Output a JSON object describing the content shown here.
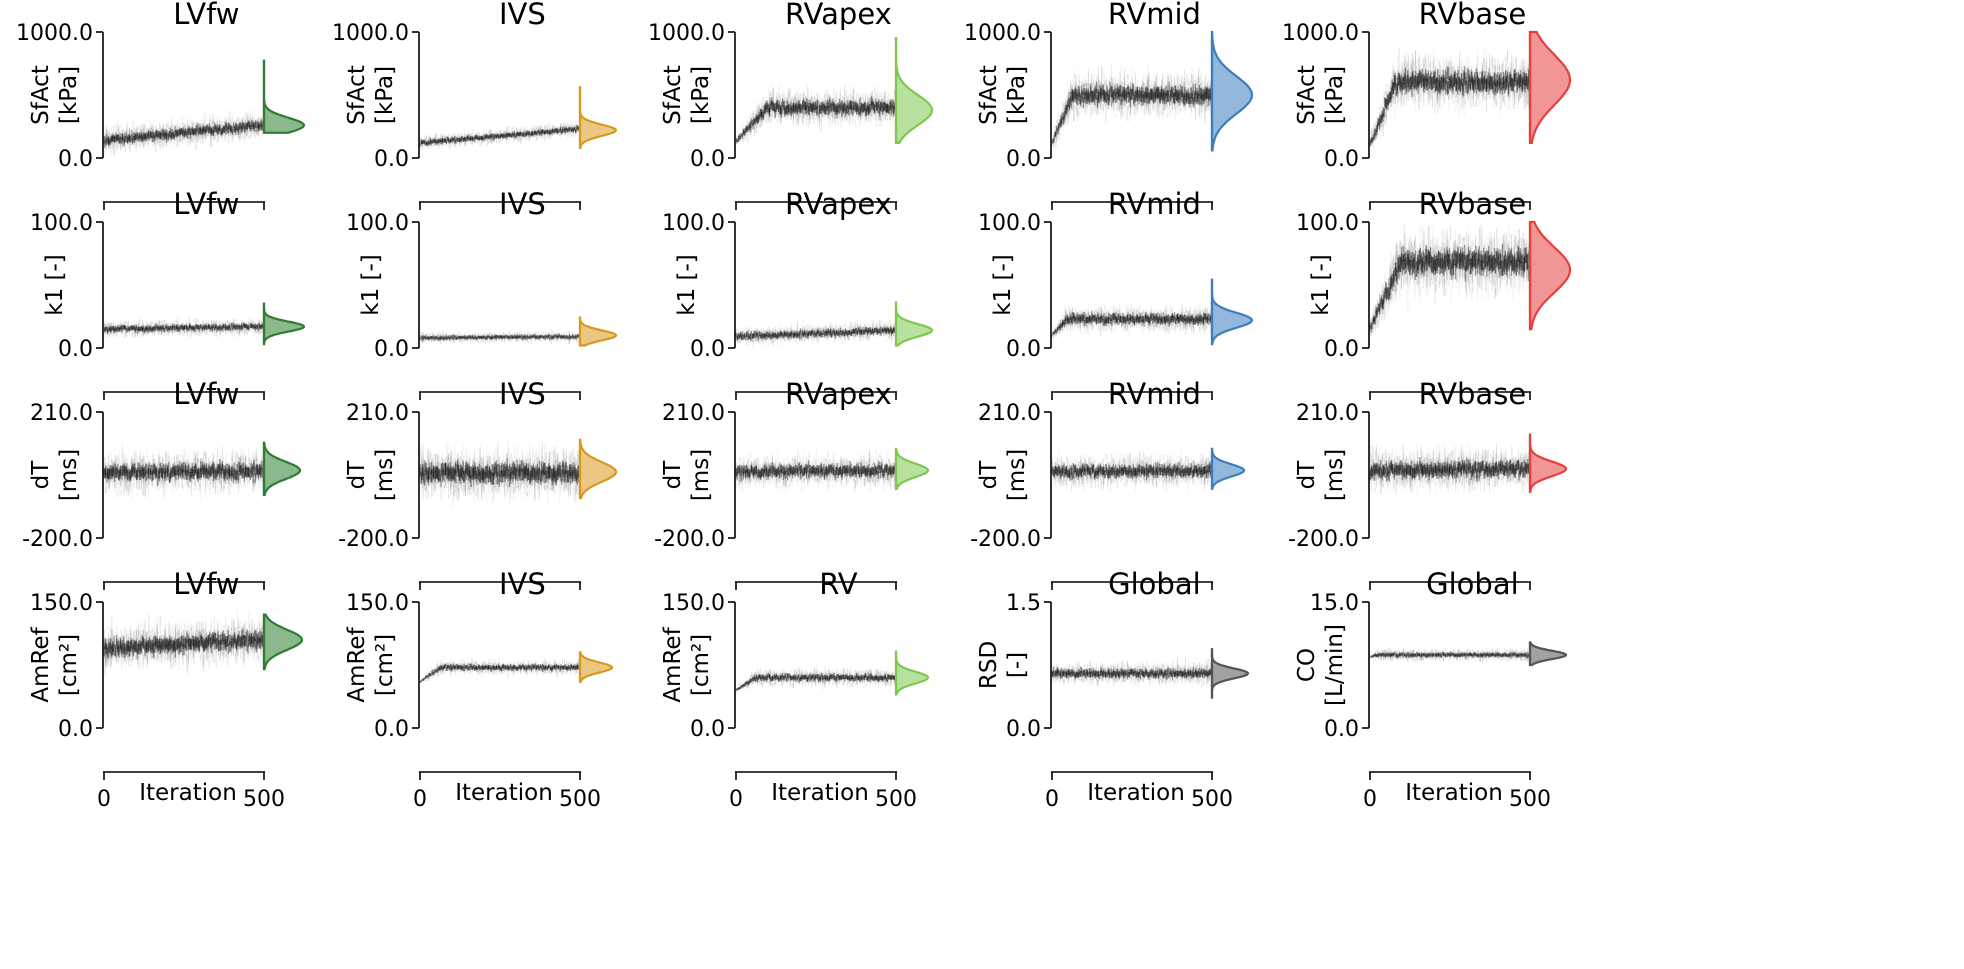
{
  "figure": {
    "xlabel": "Iteration",
    "x_ticks": [
      "0",
      "500"
    ]
  },
  "chart_data": [
    {
      "type": "area",
      "row": 0,
      "col": 0,
      "title": "LVfw",
      "ylabel_line1": "SfAct",
      "ylabel_line2": "[kPa]",
      "ylim": [
        0,
        1000
      ],
      "ytick_labels": [
        "1000.0",
        "0.0"
      ],
      "xlim": [
        0,
        500
      ],
      "xtick_labels": [
        "0",
        "500"
      ],
      "xlabel": "Iteration",
      "color": "#2e7d32",
      "trace_start": 140,
      "trace_end": 260,
      "trace_spread": 140,
      "burn_in": 0,
      "density_mode": 260,
      "density_sd": 60,
      "density_max_width": 40,
      "density_min": 200,
      "density_max": 780
    },
    {
      "type": "area",
      "row": 0,
      "col": 1,
      "title": "IVS",
      "ylabel_line1": "SfAct",
      "ylabel_line2": "[kPa]",
      "ylim": [
        0,
        1000
      ],
      "ytick_labels": [
        "1000.0",
        "0.0"
      ],
      "xlim": [
        0,
        500
      ],
      "xtick_labels": [
        "0",
        "500"
      ],
      "xlabel": "Iteration",
      "color": "#d89a1e",
      "trace_start": 120,
      "trace_end": 230,
      "trace_spread": 80,
      "burn_in": 0,
      "density_mode": 220,
      "density_sd": 45,
      "density_max_width": 36,
      "density_min": 80,
      "density_max": 570
    },
    {
      "type": "area",
      "row": 0,
      "col": 2,
      "title": "RVapex",
      "ylabel_line1": "SfAct",
      "ylabel_line2": "[kPa]",
      "ylim": [
        0,
        1000
      ],
      "ytick_labels": [
        "1000.0",
        "0.0"
      ],
      "xlim": [
        0,
        500
      ],
      "xtick_labels": [
        "0",
        "500"
      ],
      "xlabel": "Iteration",
      "color": "#7ec850",
      "trace_start": 130,
      "trace_end": 400,
      "trace_spread": 190,
      "burn_in": 60,
      "density_mode": 380,
      "density_sd": 120,
      "density_max_width": 36,
      "density_min": 120,
      "density_max": 960
    },
    {
      "type": "area",
      "row": 0,
      "col": 3,
      "title": "RVmid",
      "ylabel_line1": "SfAct",
      "ylabel_line2": "[kPa]",
      "ylim": [
        0,
        1000
      ],
      "ytick_labels": [
        "1000.0",
        "0.0"
      ],
      "xlim": [
        0,
        500
      ],
      "xtick_labels": [
        "0",
        "500"
      ],
      "xlabel": "Iteration",
      "color": "#3d7ebf",
      "trace_start": 120,
      "trace_end": 500,
      "trace_spread": 240,
      "burn_in": 40,
      "density_mode": 500,
      "density_sd": 150,
      "density_max_width": 40,
      "density_min": 60,
      "density_max": 1000
    },
    {
      "type": "area",
      "row": 0,
      "col": 4,
      "title": "RVbase",
      "ylabel_line1": "SfAct",
      "ylabel_line2": "[kPa]",
      "ylim": [
        0,
        1000
      ],
      "ytick_labels": [
        "1000.0",
        "0.0"
      ],
      "xlim": [
        0,
        500
      ],
      "xtick_labels": [
        "0",
        "500"
      ],
      "xlabel": "Iteration",
      "color": "#e5403e",
      "trace_start": 100,
      "trace_end": 600,
      "trace_spread": 280,
      "burn_in": 50,
      "density_mode": 620,
      "density_sd": 200,
      "density_max_width": 40,
      "density_min": 120,
      "density_max": 1000
    },
    {
      "type": "area",
      "row": 1,
      "col": 0,
      "title": "LVfw",
      "ylabel_line1": "k1 [-]",
      "ylabel_line2": "",
      "ylim": [
        0,
        100
      ],
      "ytick_labels": [
        "100.0",
        "0.0"
      ],
      "xlim": [
        0,
        500
      ],
      "xtick_labels": [
        "0",
        "500"
      ],
      "xlabel": "Iteration",
      "color": "#2e7d32",
      "trace_start": 15,
      "trace_end": 17,
      "trace_spread": 9,
      "burn_in": 0,
      "density_mode": 17,
      "density_sd": 4,
      "density_max_width": 40,
      "density_min": 3,
      "density_max": 36
    },
    {
      "type": "area",
      "row": 1,
      "col": 1,
      "title": "IVS",
      "ylabel_line1": "k1 [-]",
      "ylabel_line2": "",
      "ylim": [
        0,
        100
      ],
      "ytick_labels": [
        "100.0",
        "0.0"
      ],
      "xlim": [
        0,
        500
      ],
      "xtick_labels": [
        "0",
        "500"
      ],
      "xlabel": "Iteration",
      "color": "#d89a1e",
      "trace_start": 8,
      "trace_end": 9,
      "trace_spread": 6,
      "burn_in": 0,
      "density_mode": 10,
      "density_sd": 4,
      "density_max_width": 36,
      "density_min": 2,
      "density_max": 25
    },
    {
      "type": "area",
      "row": 1,
      "col": 2,
      "title": "RVapex",
      "ylabel_line1": "k1 [-]",
      "ylabel_line2": "",
      "ylim": [
        0,
        100
      ],
      "ytick_labels": [
        "100.0",
        "0.0"
      ],
      "xlim": [
        0,
        500
      ],
      "xtick_labels": [
        "0",
        "500"
      ],
      "xlabel": "Iteration",
      "color": "#7ec850",
      "trace_start": 9,
      "trace_end": 14,
      "trace_spread": 10,
      "burn_in": 0,
      "density_mode": 14,
      "density_sd": 5,
      "density_max_width": 36,
      "density_min": 2,
      "density_max": 37
    },
    {
      "type": "area",
      "row": 1,
      "col": 3,
      "title": "RVmid",
      "ylabel_line1": "k1 [-]",
      "ylabel_line2": "",
      "ylim": [
        0,
        100
      ],
      "ytick_labels": [
        "100.0",
        "0.0"
      ],
      "xlim": [
        0,
        500
      ],
      "xtick_labels": [
        "0",
        "500"
      ],
      "xlabel": "Iteration",
      "color": "#3d7ebf",
      "trace_start": 10,
      "trace_end": 23,
      "trace_spread": 14,
      "burn_in": 30,
      "density_mode": 22,
      "density_sd": 6,
      "density_max_width": 40,
      "density_min": 3,
      "density_max": 55
    },
    {
      "type": "area",
      "row": 1,
      "col": 4,
      "title": "RVbase",
      "ylabel_line1": "k1 [-]",
      "ylabel_line2": "",
      "ylim": [
        0,
        100
      ],
      "ytick_labels": [
        "100.0",
        "0.0"
      ],
      "xlim": [
        0,
        500
      ],
      "xtick_labels": [
        "0",
        "500"
      ],
      "xlabel": "Iteration",
      "color": "#e5403e",
      "trace_start": 15,
      "trace_end": 68,
      "trace_spread": 34,
      "burn_in": 60,
      "density_mode": 62,
      "density_sd": 18,
      "density_max_width": 40,
      "density_min": 15,
      "density_max": 100
    },
    {
      "type": "area",
      "row": 2,
      "col": 0,
      "title": "LVfw",
      "ylabel_line1": "dT",
      "ylabel_line2": "[ms]",
      "ylim": [
        -200,
        210
      ],
      "ytick_labels": [
        "210.0",
        "-200.0"
      ],
      "xlim": [
        0,
        500
      ],
      "xtick_labels": [
        "0",
        "500"
      ],
      "xlabel": "Iteration",
      "color": "#2e7d32",
      "trace_start": 10,
      "trace_end": 20,
      "trace_spread": 90,
      "burn_in": 0,
      "density_mode": 20,
      "density_sd": 28,
      "density_max_width": 36,
      "density_min": -60,
      "density_max": 110
    },
    {
      "type": "area",
      "row": 2,
      "col": 1,
      "title": "IVS",
      "ylabel_line1": "dT",
      "ylabel_line2": "[ms]",
      "ylim": [
        -200,
        210
      ],
      "ytick_labels": [
        "210.0",
        "-200.0"
      ],
      "xlim": [
        0,
        500
      ],
      "xtick_labels": [
        "0",
        "500"
      ],
      "xlabel": "Iteration",
      "color": "#d89a1e",
      "trace_start": 10,
      "trace_end": 10,
      "trace_spread": 110,
      "burn_in": 0,
      "density_mode": 15,
      "density_sd": 32,
      "density_max_width": 36,
      "density_min": -70,
      "density_max": 120
    },
    {
      "type": "area",
      "row": 2,
      "col": 2,
      "title": "RVapex",
      "ylabel_line1": "dT",
      "ylabel_line2": "[ms]",
      "ylim": [
        -200,
        210
      ],
      "ytick_labels": [
        "210.0",
        "-200.0"
      ],
      "xlim": [
        0,
        500
      ],
      "xtick_labels": [
        "0",
        "500"
      ],
      "xlabel": "Iteration",
      "color": "#7ec850",
      "trace_start": 15,
      "trace_end": 20,
      "trace_spread": 70,
      "burn_in": 0,
      "density_mode": 20,
      "density_sd": 22,
      "density_max_width": 32,
      "density_min": -40,
      "density_max": 90
    },
    {
      "type": "area",
      "row": 2,
      "col": 3,
      "title": "RVmid",
      "ylabel_line1": "dT",
      "ylabel_line2": "[ms]",
      "ylim": [
        -200,
        210
      ],
      "ytick_labels": [
        "210.0",
        "-200.0"
      ],
      "xlim": [
        0,
        500
      ],
      "xtick_labels": [
        "0",
        "500"
      ],
      "xlabel": "Iteration",
      "color": "#3d7ebf",
      "trace_start": 15,
      "trace_end": 20,
      "trace_spread": 70,
      "burn_in": 0,
      "density_mode": 20,
      "density_sd": 20,
      "density_max_width": 32,
      "density_min": -40,
      "density_max": 90
    },
    {
      "type": "area",
      "row": 2,
      "col": 4,
      "title": "RVbase",
      "ylabel_line1": "dT",
      "ylabel_line2": "[ms]",
      "ylim": [
        -200,
        210
      ],
      "ytick_labels": [
        "210.0",
        "-200.0"
      ],
      "xlim": [
        0,
        500
      ],
      "xtick_labels": [
        "0",
        "500"
      ],
      "xlabel": "Iteration",
      "color": "#e5403e",
      "trace_start": 20,
      "trace_end": 25,
      "trace_spread": 90,
      "burn_in": 0,
      "density_mode": 25,
      "density_sd": 24,
      "density_max_width": 36,
      "density_min": -50,
      "density_max": 140
    },
    {
      "type": "area",
      "row": 3,
      "col": 0,
      "title": "LVfw",
      "ylabel_line1": "AmRef",
      "ylabel_line2": "[cm²]",
      "ylim": [
        0,
        150
      ],
      "ytick_labels": [
        "150.0",
        "0.0"
      ],
      "xlim": [
        0,
        500
      ],
      "xtick_labels": [
        "0",
        "500"
      ],
      "xlabel": "Iteration",
      "color": "#2e7d32",
      "trace_start": 95,
      "trace_end": 105,
      "trace_spread": 35,
      "burn_in": 0,
      "density_mode": 105,
      "density_sd": 12,
      "density_max_width": 38,
      "density_min": 70,
      "density_max": 135
    },
    {
      "type": "area",
      "row": 3,
      "col": 1,
      "title": "IVS",
      "ylabel_line1": "AmRef",
      "ylabel_line2": "[cm²]",
      "ylim": [
        0,
        150
      ],
      "ytick_labels": [
        "150.0",
        "0.0"
      ],
      "xlim": [
        0,
        500
      ],
      "xtick_labels": [
        "0",
        "500"
      ],
      "xlabel": "Iteration",
      "color": "#d89a1e",
      "trace_start": 55,
      "trace_end": 72,
      "trace_spread": 12,
      "burn_in": 40,
      "density_mode": 72,
      "density_sd": 6,
      "density_max_width": 32,
      "density_min": 55,
      "density_max": 90
    },
    {
      "type": "area",
      "row": 3,
      "col": 2,
      "title": "RV",
      "ylabel_line1": "AmRef",
      "ylabel_line2": "[cm²]",
      "ylim": [
        0,
        150
      ],
      "ytick_labels": [
        "150.0",
        "0.0"
      ],
      "xlim": [
        0,
        500
      ],
      "xtick_labels": [
        "0",
        "500"
      ],
      "xlabel": "Iteration",
      "color": "#7ec850",
      "trace_start": 45,
      "trace_end": 60,
      "trace_spread": 14,
      "burn_in": 40,
      "density_mode": 60,
      "density_sd": 7,
      "density_max_width": 32,
      "density_min": 40,
      "density_max": 92
    },
    {
      "type": "area",
      "row": 3,
      "col": 3,
      "title": "Global",
      "ylabel_line1": "RSD",
      "ylabel_line2": "[-]",
      "ylim": [
        0,
        1.5
      ],
      "ytick_labels": [
        "1.5",
        "0.0"
      ],
      "xlim": [
        0,
        500
      ],
      "xtick_labels": [
        "0",
        "500"
      ],
      "xlabel": "Iteration",
      "color": "#555555",
      "trace_start": 0.65,
      "trace_end": 0.65,
      "trace_spread": 0.18,
      "burn_in": 0,
      "density_mode": 0.65,
      "density_sd": 0.06,
      "density_max_width": 36,
      "density_min": 0.35,
      "density_max": 0.95
    },
    {
      "type": "area",
      "row": 3,
      "col": 4,
      "title": "Global",
      "ylabel_line1": "CO",
      "ylabel_line2": "[L/min]",
      "ylim": [
        0,
        15
      ],
      "ytick_labels": [
        "15.0",
        "0.0"
      ],
      "xlim": [
        0,
        500
      ],
      "xtick_labels": [
        "0",
        "500"
      ],
      "xlabel": "Iteration",
      "color": "#555555",
      "trace_start": 8.5,
      "trace_end": 8.7,
      "trace_spread": 1.0,
      "burn_in": 15,
      "density_mode": 8.7,
      "density_sd": 0.5,
      "density_max_width": 36,
      "density_min": 7.5,
      "density_max": 10.2
    }
  ]
}
